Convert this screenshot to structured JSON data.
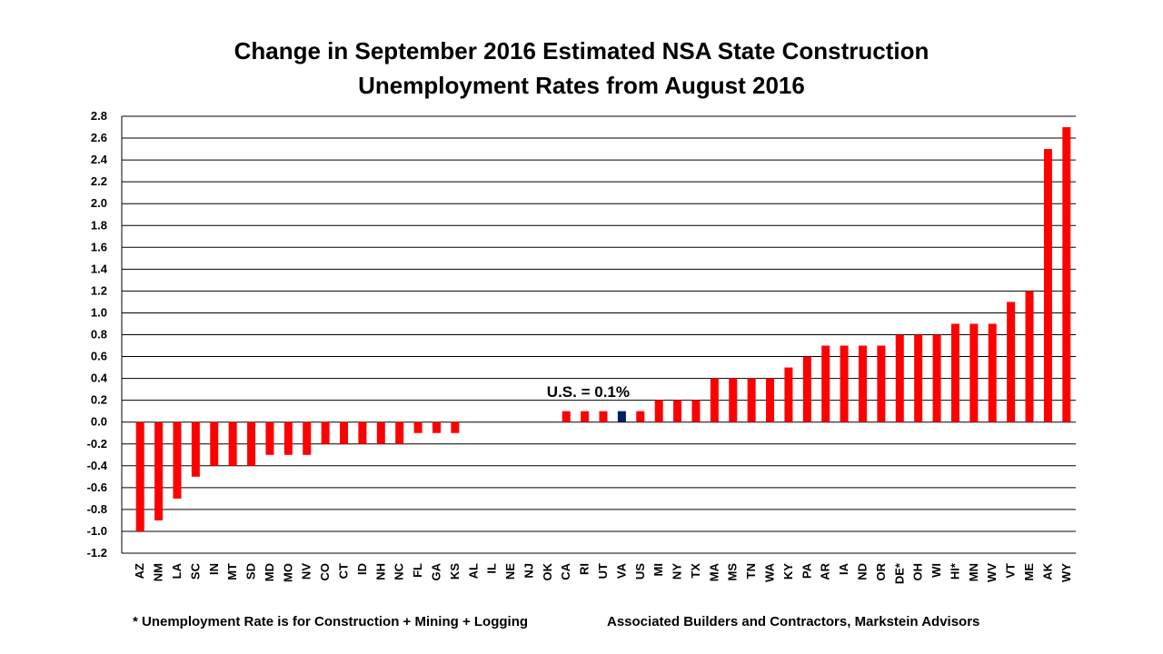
{
  "chart_data": {
    "type": "bar",
    "title_line1": "Change in September 2016 Estimated NSA State Construction",
    "title_line2": "Unemployment Rates from August 2016",
    "categories": [
      "AZ",
      "NM",
      "LA",
      "SC",
      "IN",
      "MT",
      "SD",
      "MD",
      "MO",
      "NV",
      "CO",
      "CT",
      "ID",
      "NH",
      "NC",
      "FL",
      "GA",
      "KS",
      "AL",
      "IL",
      "NE",
      "NJ",
      "OK",
      "CA",
      "RI",
      "UT",
      "VA",
      "US",
      "MI",
      "NY",
      "TX",
      "MA",
      "MS",
      "TN",
      "WA",
      "KY",
      "PA",
      "AR",
      "IA",
      "ND",
      "OR",
      "DE*",
      "OH",
      "WI",
      "HI*",
      "MN",
      "WV",
      "VT",
      "ME",
      "AK",
      "WY"
    ],
    "values": [
      -1.0,
      -0.9,
      -0.7,
      -0.5,
      -0.4,
      -0.4,
      -0.4,
      -0.3,
      -0.3,
      -0.3,
      -0.2,
      -0.2,
      -0.2,
      -0.2,
      -0.2,
      -0.1,
      -0.1,
      -0.1,
      0,
      0,
      0,
      0,
      0,
      0.1,
      0.1,
      0.1,
      0.1,
      0.1,
      0.2,
      0.2,
      0.2,
      0.4,
      0.4,
      0.4,
      0.4,
      0.5,
      0.6,
      0.7,
      0.7,
      0.7,
      0.7,
      0.8,
      0.8,
      0.8,
      0.9,
      0.9,
      0.9,
      1.1,
      1.2,
      2.5,
      2.7
    ],
    "ylim": [
      -1.2,
      2.8
    ],
    "yticks": [
      "2.8",
      "2.6",
      "2.4",
      "2.2",
      "2.0",
      "1.8",
      "1.6",
      "1.4",
      "1.2",
      "1.0",
      "0.8",
      "0.6",
      "0.4",
      "0.2",
      "0.0",
      "-0.2",
      "-0.4",
      "-0.6",
      "-0.8",
      "-1.0",
      "-1.2"
    ],
    "ytick_values": [
      2.8,
      2.6,
      2.4,
      2.2,
      2.0,
      1.8,
      1.6,
      1.4,
      1.2,
      1.0,
      0.8,
      0.6,
      0.4,
      0.2,
      0.0,
      -0.2,
      -0.4,
      -0.6,
      -0.8,
      -1.0,
      -1.2
    ],
    "highlight_category": "VA",
    "bar_color": "#ff0000",
    "highlight_color": "#002060",
    "annotation": "U.S. = 0.1%",
    "annotation_category": "VA",
    "grid": true,
    "xlabel": "",
    "ylabel": ""
  },
  "footnotes": {
    "left": "* Unemployment Rate is for Construction + Mining + Logging",
    "right": "Associated Builders and Contractors, Markstein Advisors"
  }
}
